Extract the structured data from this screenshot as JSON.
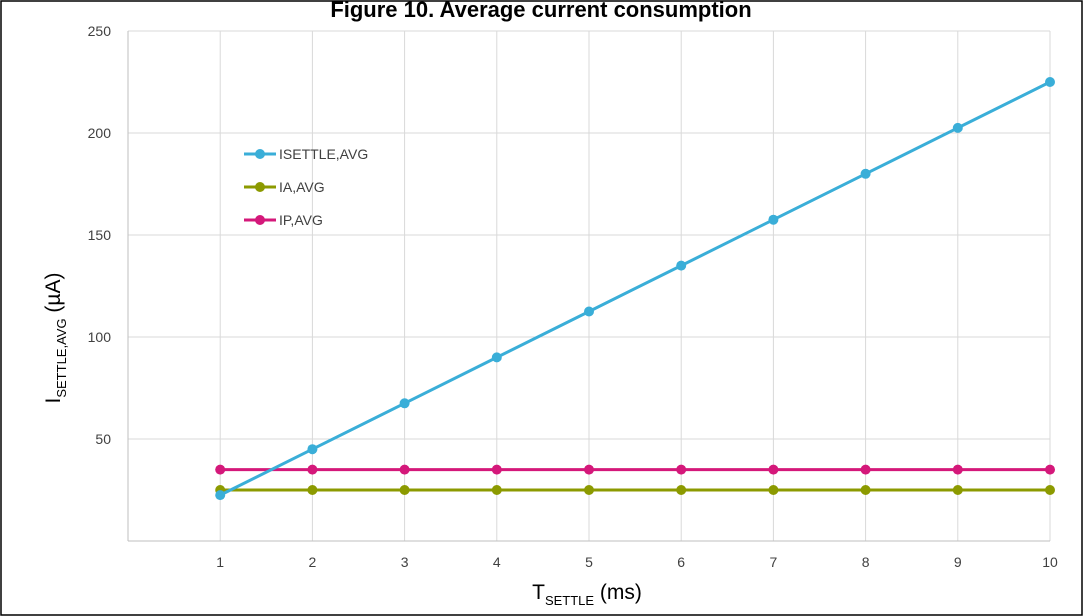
{
  "chart_data": {
    "type": "line",
    "title": "Figure 10. Average current consumption",
    "xlabel": {
      "main": "T",
      "sub": "SETTLE",
      "suffix": " (ms)"
    },
    "ylabel": {
      "main": "I",
      "sub": "SETTLE,AVG",
      "suffix": " (µA)"
    },
    "x": [
      1,
      2,
      3,
      4,
      5,
      6,
      7,
      8,
      9,
      10
    ],
    "xlim": [
      0,
      10
    ],
    "ylim": [
      0,
      250
    ],
    "yticks": [
      50,
      100,
      150,
      200,
      250
    ],
    "grid": true,
    "legend_position": "upper-left",
    "series": [
      {
        "name": "ISETTLE,AVG",
        "color": "#3AAED8",
        "values": [
          22.5,
          45,
          67.5,
          90,
          112.5,
          135,
          157.5,
          180,
          202.5,
          225
        ]
      },
      {
        "name": "IA,AVG",
        "color": "#8C9A00",
        "values": [
          25,
          25,
          25,
          25,
          25,
          25,
          25,
          25,
          25,
          25
        ]
      },
      {
        "name": "IP,AVG",
        "color": "#D4187A",
        "values": [
          35,
          35,
          35,
          35,
          35,
          35,
          35,
          35,
          35,
          35
        ]
      }
    ]
  }
}
